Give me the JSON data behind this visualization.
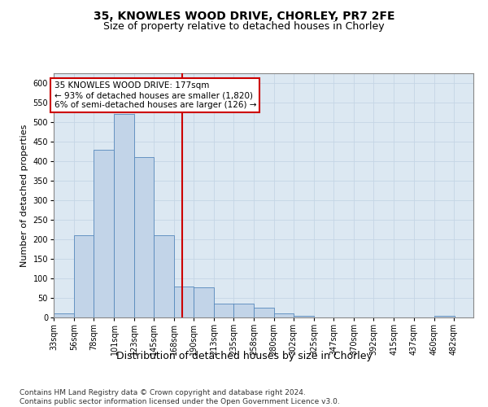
{
  "title_line1": "35, KNOWLES WOOD DRIVE, CHORLEY, PR7 2FE",
  "title_line2": "Size of property relative to detached houses in Chorley",
  "xlabel": "Distribution of detached houses by size in Chorley",
  "ylabel": "Number of detached properties",
  "footnote": "Contains HM Land Registry data © Crown copyright and database right 2024.\nContains public sector information licensed under the Open Government Licence v3.0.",
  "bin_labels": [
    "33sqm",
    "56sqm",
    "78sqm",
    "101sqm",
    "123sqm",
    "145sqm",
    "168sqm",
    "190sqm",
    "213sqm",
    "235sqm",
    "258sqm",
    "280sqm",
    "302sqm",
    "325sqm",
    "347sqm",
    "370sqm",
    "392sqm",
    "415sqm",
    "437sqm",
    "460sqm",
    "482sqm"
  ],
  "bin_edges": [
    33,
    56,
    78,
    101,
    123,
    145,
    168,
    190,
    213,
    235,
    258,
    280,
    302,
    325,
    347,
    370,
    392,
    415,
    437,
    460,
    482
  ],
  "bar_heights": [
    10,
    210,
    430,
    520,
    410,
    210,
    80,
    78,
    35,
    35,
    25,
    10,
    5,
    0,
    0,
    0,
    0,
    0,
    0,
    5
  ],
  "bar_color": "#c2d4e8",
  "bar_edge_color": "#5588bb",
  "property_line_x": 177,
  "property_line_color": "#cc0000",
  "annotation_text": "35 KNOWLES WOOD DRIVE: 177sqm\n← 93% of detached houses are smaller (1,820)\n6% of semi-detached houses are larger (126) →",
  "annotation_box_edgecolor": "#cc0000",
  "ylim": [
    0,
    625
  ],
  "yticks": [
    0,
    50,
    100,
    150,
    200,
    250,
    300,
    350,
    400,
    450,
    500,
    550,
    600
  ],
  "grid_color": "#c5d5e5",
  "bg_color": "#dce8f2",
  "title_fontsize": 10,
  "subtitle_fontsize": 9,
  "ylabel_fontsize": 8,
  "xlabel_fontsize": 9,
  "tick_fontsize": 7,
  "ann_fontsize": 7.5,
  "footnote_fontsize": 6.5
}
